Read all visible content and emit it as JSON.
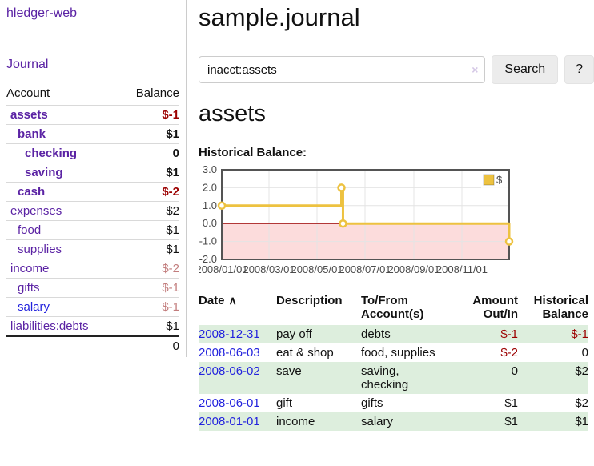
{
  "sidebar": {
    "app_title": "hledger-web",
    "journal_label": "Journal",
    "table": {
      "account_header": "Account",
      "balance_header": "Balance"
    },
    "accounts": [
      {
        "label": "assets",
        "indent": 0,
        "bold": true,
        "link_color": "purple",
        "balance": "$-1",
        "balance_style": "neg-strong"
      },
      {
        "label": "bank",
        "indent": 1,
        "bold": true,
        "link_color": "purple",
        "balance": "$1",
        "balance_style": "strong"
      },
      {
        "label": "checking",
        "indent": 2,
        "bold": true,
        "link_color": "purple",
        "balance": "0",
        "balance_style": "strong"
      },
      {
        "label": "saving",
        "indent": 2,
        "bold": true,
        "link_color": "purple",
        "balance": "$1",
        "balance_style": "strong"
      },
      {
        "label": "cash",
        "indent": 1,
        "bold": true,
        "link_color": "purple",
        "balance": "$-2",
        "balance_style": "neg-strong"
      },
      {
        "label": "expenses",
        "indent": 0,
        "bold": false,
        "link_color": "purple",
        "balance": "$2",
        "balance_style": "plain"
      },
      {
        "label": "food",
        "indent": 1,
        "bold": false,
        "link_color": "purple",
        "balance": "$1",
        "balance_style": "plain"
      },
      {
        "label": "supplies",
        "indent": 1,
        "bold": false,
        "link_color": "purple",
        "balance": "$1",
        "balance_style": "plain"
      },
      {
        "label": "income",
        "indent": 0,
        "bold": false,
        "link_color": "purple",
        "balance": "$-2",
        "balance_style": "neg-muted"
      },
      {
        "label": "gifts",
        "indent": 1,
        "bold": false,
        "link_color": "purple",
        "balance": "$-1",
        "balance_style": "neg-muted"
      },
      {
        "label": "salary",
        "indent": 1,
        "bold": false,
        "link_color": "blue",
        "balance": "$-1",
        "balance_style": "neg-muted"
      },
      {
        "label": "liabilities:debts",
        "indent": 0,
        "bold": false,
        "link_color": "purple",
        "balance": "$1",
        "balance_style": "plain"
      }
    ],
    "total": "0"
  },
  "main": {
    "title": "sample.journal",
    "search": {
      "value": "inacct:assets",
      "clear_icon": "×",
      "button_label": "Search",
      "help_label": "?"
    },
    "account_heading": "assets"
  },
  "register": {
    "columns": [
      {
        "label": "Date",
        "caret": "∧"
      },
      {
        "label": "Description"
      },
      {
        "label": "To/From Account(s)"
      },
      {
        "label": "Amount Out/In"
      },
      {
        "label": "Historical Balance"
      }
    ],
    "rows": [
      {
        "date": "2008-12-31",
        "description": "pay off",
        "accounts": "debts",
        "amount": "$-1",
        "amount_neg": true,
        "balance": "$-1",
        "balance_neg": true
      },
      {
        "date": "2008-06-03",
        "description": "eat & shop",
        "accounts": "food, supplies",
        "amount": "$-2",
        "amount_neg": true,
        "balance": "0",
        "balance_neg": false
      },
      {
        "date": "2008-06-02",
        "description": "save",
        "accounts": "saving, checking",
        "amount": "0",
        "amount_neg": false,
        "balance": "$2",
        "balance_neg": false
      },
      {
        "date": "2008-06-01",
        "description": "gift",
        "accounts": "gifts",
        "amount": "$1",
        "amount_neg": false,
        "balance": "$2",
        "balance_neg": false
      },
      {
        "date": "2008-01-01",
        "description": "income",
        "accounts": "salary",
        "amount": "$1",
        "amount_neg": false,
        "balance": "$1",
        "balance_neg": false
      }
    ]
  },
  "chart_data": {
    "type": "line",
    "title": "Historical Balance:",
    "x_start": "2008-01-01",
    "x_end": "2008-12-31",
    "ylim": [
      -2,
      3
    ],
    "y_ticks": [
      3,
      2,
      1,
      0,
      -1,
      -2
    ],
    "x_ticks": [
      {
        "label": "2008/01/01",
        "date": "2008-01-01"
      },
      {
        "label": "2008/03/01",
        "date": "2008-03-01"
      },
      {
        "label": "2008/05/01",
        "date": "2008-05-01"
      },
      {
        "label": "2008/07/01",
        "date": "2008-07-01"
      },
      {
        "label": "2008/09/01",
        "date": "2008-09-01"
      },
      {
        "label": "2008/11/01",
        "date": "2008-11-01"
      }
    ],
    "legend": [
      {
        "label": "$",
        "color": "#edc240"
      }
    ],
    "series": [
      {
        "name": "$",
        "type": "step",
        "points": [
          {
            "date": "2008-01-01",
            "value": 1
          },
          {
            "date": "2008-06-01",
            "value": 2
          },
          {
            "date": "2008-06-03",
            "value": 0
          },
          {
            "date": "2008-12-31",
            "value": -1
          }
        ]
      }
    ],
    "colors": {
      "line": "#edc240",
      "marker_fill": "#ffffff",
      "zero_line": "#990000",
      "below_zero_fill": "#fcdcdc",
      "grid": "#e4e4e4",
      "border": "#545454",
      "tick_text": "#4a4a4a"
    }
  }
}
